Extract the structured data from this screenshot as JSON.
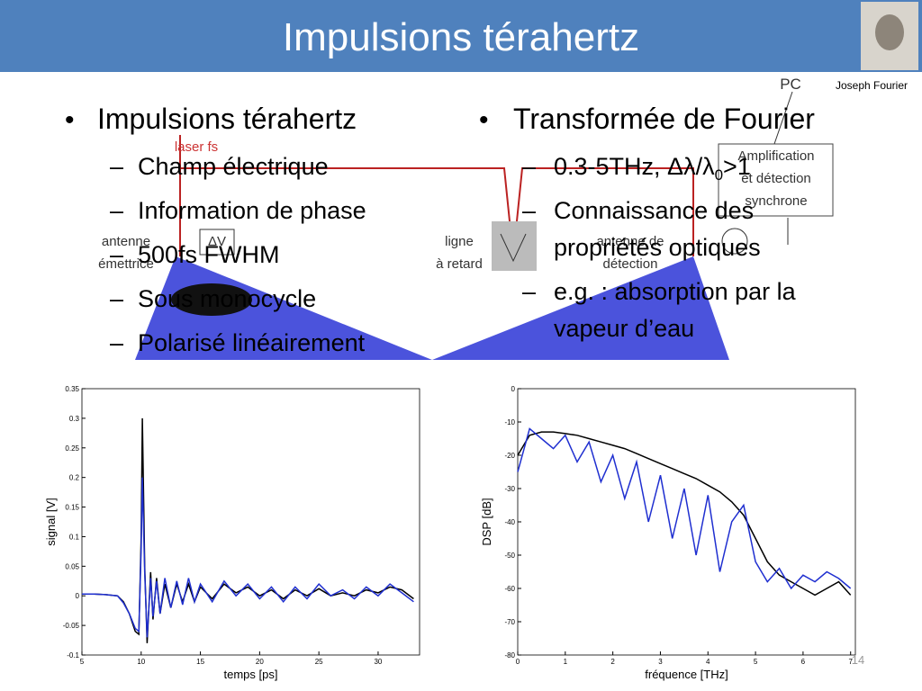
{
  "header": {
    "title": "Impulsions térahertz",
    "portrait_caption": "Joseph Fourier"
  },
  "left_column": {
    "bullet": "Impulsions térahertz",
    "items": [
      "Champ électrique",
      "Information de phase",
      "500fs FWHM",
      "Sous monocycle",
      "Polarisé linéairement"
    ]
  },
  "right_column": {
    "bullet": "Transformée de Fourier",
    "items": [
      {
        "parts": [
          "0.3-5THz, Δλ/λ",
          "0",
          ">1"
        ]
      },
      {
        "lines": [
          "Connaissance des",
          "propriétés optiques"
        ]
      },
      {
        "lines": [
          "e.g. : absorption par la",
          "vapeur d’eau"
        ]
      }
    ]
  },
  "diagram": {
    "laser": "laser fs",
    "emitter": [
      "antenne",
      "émettrice"
    ],
    "voltage": "ΔV",
    "delay": [
      "ligne",
      "à retard"
    ],
    "detector": [
      "antenne de",
      "détection"
    ],
    "pc": "PC",
    "amplifier": [
      "Amplification",
      "et détection",
      "synchrone"
    ]
  },
  "page_number": "14",
  "chart_data": [
    {
      "type": "line",
      "xlabel": "temps [ps]",
      "ylabel": "signal [V]",
      "xlim": [
        5,
        33.5
      ],
      "ylim": [
        -0.1,
        0.35
      ],
      "xticks": [
        5,
        10,
        15,
        20,
        25,
        30
      ],
      "yticks": [
        -0.1,
        -0.05,
        0,
        0.05,
        0.1,
        0.15,
        0.2,
        0.25,
        0.3,
        0.35
      ],
      "x": [
        5,
        6,
        7,
        8,
        8.5,
        9,
        9.5,
        9.8,
        10,
        10.1,
        10.3,
        10.5,
        10.8,
        11,
        11.3,
        11.6,
        12,
        12.5,
        13,
        13.5,
        14,
        14.5,
        15,
        16,
        17,
        18,
        19,
        20,
        21,
        22,
        23,
        24,
        25,
        26,
        27,
        28,
        29,
        30,
        31,
        32,
        33
      ],
      "series": [
        {
          "color": "#000000",
          "values": [
            0.003,
            0.003,
            0.002,
            0,
            -0.01,
            -0.03,
            -0.06,
            -0.065,
            0.1,
            0.3,
            0.05,
            -0.08,
            0.04,
            -0.04,
            0.03,
            -0.03,
            0.02,
            -0.02,
            0.02,
            -0.01,
            0.02,
            -0.01,
            0.015,
            -0.005,
            0.02,
            0.005,
            0.015,
            0.0,
            0.01,
            -0.005,
            0.01,
            0.0,
            0.012,
            0.0,
            0.005,
            0.0,
            0.01,
            0.005,
            0.015,
            0.01,
            -0.005
          ]
        },
        {
          "color": "#1f2fd0",
          "values": [
            0.003,
            0.003,
            0.002,
            0,
            -0.012,
            -0.03,
            -0.055,
            -0.06,
            0.08,
            0.2,
            0.04,
            -0.07,
            0.03,
            -0.035,
            0.025,
            -0.03,
            0.03,
            -0.02,
            0.025,
            -0.015,
            0.03,
            -0.01,
            0.02,
            -0.01,
            0.025,
            0.0,
            0.02,
            -0.005,
            0.015,
            -0.01,
            0.015,
            -0.005,
            0.02,
            0.0,
            0.01,
            -0.005,
            0.015,
            0.0,
            0.02,
            0.005,
            -0.01
          ]
        }
      ]
    },
    {
      "type": "line",
      "xlabel": "fréquence [THz]",
      "ylabel": "DSP [dB]",
      "xlim": [
        0,
        7.1
      ],
      "ylim": [
        -80,
        0
      ],
      "xticks": [
        0,
        1,
        2,
        3,
        4,
        5,
        6,
        7
      ],
      "yticks": [
        -80,
        -70,
        -60,
        -50,
        -40,
        -30,
        -20,
        -10,
        0
      ],
      "x": [
        0,
        0.25,
        0.5,
        0.75,
        1,
        1.25,
        1.5,
        1.75,
        2,
        2.25,
        2.5,
        2.75,
        3,
        3.25,
        3.5,
        3.75,
        4,
        4.25,
        4.5,
        4.75,
        5,
        5.25,
        5.5,
        5.75,
        6,
        6.25,
        6.5,
        6.75,
        7
      ],
      "series": [
        {
          "color": "#000000",
          "values": [
            -20,
            -14,
            -13,
            -13,
            -13.5,
            -14,
            -15,
            -16,
            -17,
            -18,
            -19.5,
            -21,
            -22.5,
            -24,
            -25.5,
            -27,
            -29,
            -31,
            -34,
            -38,
            -45,
            -52,
            -56,
            -58,
            -60,
            -62,
            -60,
            -58,
            -62
          ]
        },
        {
          "color": "#1f2fd0",
          "values": [
            -25,
            -12,
            -15,
            -18,
            -14,
            -22,
            -16,
            -28,
            -20,
            -33,
            -22,
            -40,
            -26,
            -45,
            -30,
            -50,
            -32,
            -55,
            -40,
            -35,
            -52,
            -58,
            -54,
            -60,
            -56,
            -58,
            -55,
            -57,
            -60
          ]
        }
      ]
    }
  ]
}
